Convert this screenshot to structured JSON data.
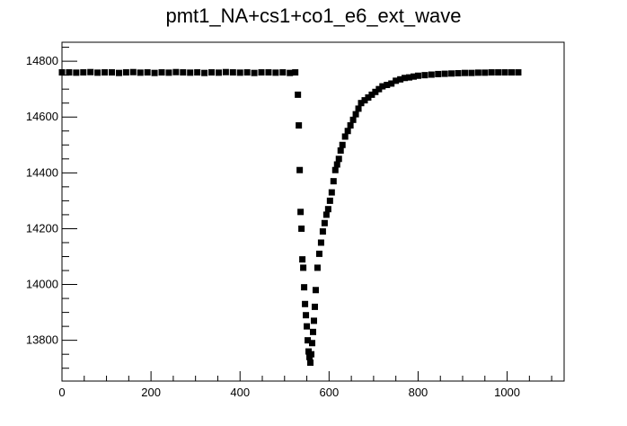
{
  "chart_data": {
    "type": "scatter",
    "title": "pmt1_NA+cs1+co1_e6_ext_wave",
    "xlabel": "",
    "ylabel": "",
    "xlim": [
      0,
      1128
    ],
    "ylim": [
      13654,
      14868
    ],
    "x_ticks": [
      0,
      200,
      400,
      600,
      800,
      1000
    ],
    "y_ticks": [
      13800,
      14000,
      14200,
      14400,
      14600,
      14800
    ],
    "grid": false,
    "legend": "none",
    "marker": "square",
    "marker_color": "#000000",
    "series": [
      {
        "x": [
          0,
          16,
          32,
          48,
          64,
          80,
          96,
          112,
          128,
          144,
          160,
          176,
          192,
          208,
          224,
          240,
          256,
          272,
          288,
          304,
          320,
          336,
          352,
          368,
          384,
          400,
          416,
          432,
          448,
          464,
          480,
          496,
          512,
          524,
          530,
          532,
          534,
          536,
          538,
          540,
          542,
          544,
          546,
          548,
          550,
          552,
          554,
          556,
          558,
          560,
          562,
          564,
          566,
          568,
          570,
          574,
          578,
          582,
          586,
          590,
          594,
          598,
          602,
          606,
          610,
          614,
          618,
          622,
          626,
          630,
          636,
          642,
          648,
          654,
          660,
          666,
          672,
          680,
          688,
          696,
          704,
          712,
          720,
          730,
          740,
          750,
          760,
          770,
          780,
          790,
          800,
          815,
          830,
          845,
          860,
          875,
          890,
          905,
          920,
          935,
          950,
          965,
          980,
          995,
          1010,
          1025
        ],
        "y": [
          14760,
          14760,
          14759,
          14760,
          14761,
          14759,
          14760,
          14760,
          14758,
          14760,
          14761,
          14759,
          14760,
          14758,
          14760,
          14759,
          14761,
          14760,
          14759,
          14760,
          14758,
          14760,
          14759,
          14761,
          14760,
          14759,
          14760,
          14758,
          14760,
          14760,
          14759,
          14760,
          14758,
          14760,
          14680,
          14570,
          14410,
          14260,
          14200,
          14090,
          14060,
          13990,
          13930,
          13890,
          13850,
          13800,
          13760,
          13740,
          13720,
          13750,
          13790,
          13830,
          13870,
          13920,
          13980,
          14060,
          14110,
          14150,
          14190,
          14220,
          14250,
          14270,
          14300,
          14330,
          14370,
          14410,
          14430,
          14450,
          14480,
          14500,
          14530,
          14550,
          14570,
          14590,
          14610,
          14630,
          14650,
          14660,
          14670,
          14680,
          14690,
          14700,
          14710,
          14715,
          14720,
          14730,
          14735,
          14740,
          14742,
          14745,
          14748,
          14750,
          14752,
          14754,
          14755,
          14756,
          14757,
          14758,
          14758,
          14759,
          14759,
          14760,
          14760,
          14760,
          14760,
          14760
        ]
      }
    ]
  }
}
